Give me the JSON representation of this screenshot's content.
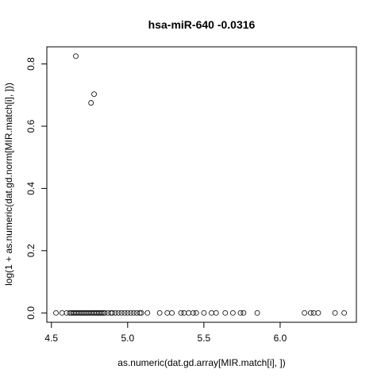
{
  "chart_data": {
    "type": "scatter",
    "title": "hsa-miR-640   -0.0316",
    "xlabel": "as.numeric(dat.gd.array[MIR.match[i], ])",
    "ylabel": "log(1 + as.numeric(dat.gd.norm[MIR.match[i], ]))",
    "xlim": [
      4.47,
      6.5
    ],
    "ylim": [
      -0.03,
      0.855
    ],
    "xticks": [
      4.5,
      5.0,
      5.5,
      6.0
    ],
    "xtick_labels": [
      "4.5",
      "5.0",
      "5.5",
      "6.0"
    ],
    "yticks": [
      0.0,
      0.2,
      0.4,
      0.6,
      0.8
    ],
    "ytick_labels": [
      "0.0",
      "0.2",
      "0.4",
      "0.6",
      "0.8"
    ],
    "grid": false,
    "legend": "none",
    "marker": "open-circle",
    "x": [
      4.66,
      4.76,
      4.78,
      4.53,
      4.57,
      4.6,
      4.62,
      4.63,
      4.64,
      4.65,
      4.66,
      4.67,
      4.68,
      4.69,
      4.7,
      4.71,
      4.72,
      4.73,
      4.74,
      4.75,
      4.76,
      4.77,
      4.78,
      4.79,
      4.8,
      4.81,
      4.82,
      4.83,
      4.84,
      4.85,
      4.87,
      4.89,
      4.9,
      4.92,
      4.94,
      4.96,
      4.98,
      5.0,
      5.02,
      5.04,
      5.06,
      5.08,
      5.09,
      5.13,
      5.21,
      5.26,
      5.29,
      5.35,
      5.37,
      5.4,
      5.43,
      5.45,
      5.5,
      5.55,
      5.58,
      5.64,
      5.69,
      5.74,
      5.76,
      5.85,
      6.16,
      6.2,
      6.22,
      6.25,
      6.36,
      6.42
    ],
    "y": [
      0.825,
      0.675,
      0.703,
      0,
      0,
      0,
      0,
      0,
      0,
      0,
      0,
      0,
      0,
      0,
      0,
      0,
      0,
      0,
      0,
      0,
      0,
      0,
      0,
      0,
      0,
      0,
      0,
      0,
      0,
      0,
      0,
      0,
      0,
      0,
      0,
      0,
      0,
      0,
      0,
      0,
      0,
      0,
      0,
      0,
      0,
      0,
      0,
      0,
      0,
      0,
      0,
      0,
      0,
      0,
      0,
      0,
      0,
      0,
      0,
      0,
      0,
      0,
      0,
      0,
      0,
      0
    ]
  }
}
